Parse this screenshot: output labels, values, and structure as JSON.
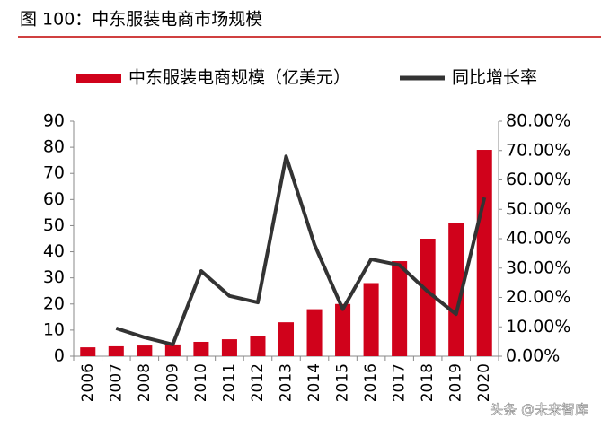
{
  "chart_data": {
    "type": "bar-line",
    "title": "图 100：中东服装电商市场规模",
    "watermark": "头条 @未来智库",
    "categories": [
      "2006",
      "2007",
      "2008",
      "2009",
      "2010",
      "2011",
      "2012",
      "2013",
      "2014",
      "2015",
      "2016",
      "2017",
      "2018",
      "2019",
      "2020"
    ],
    "series": [
      {
        "name": "中东服装电商规模（亿美元）",
        "type": "bar",
        "color": "#d0021b",
        "values": [
          3.4,
          3.8,
          4.1,
          4.5,
          5.5,
          6.5,
          7.6,
          13,
          18,
          20,
          28,
          36.4,
          45,
          51,
          79
        ]
      },
      {
        "name": "同比增长率",
        "type": "line",
        "color": "#333333",
        "axis": "y2",
        "values": [
          null,
          9.5,
          6.4,
          4,
          29,
          20.5,
          18.3,
          68,
          38,
          16,
          33,
          31,
          22,
          14.3,
          54
        ]
      }
    ],
    "ylim": [
      0,
      90
    ],
    "yticks": [
      0,
      10,
      20,
      30,
      40,
      50,
      60,
      70,
      80,
      90
    ],
    "y2lim": [
      0,
      80
    ],
    "y2ticks": [
      {
        "value": 0,
        "label": "0.00%"
      },
      {
        "value": 10,
        "label": "10.00%"
      },
      {
        "value": 20,
        "label": "20.00%"
      },
      {
        "value": 30,
        "label": "30.00%"
      },
      {
        "value": 40,
        "label": "40.00%"
      },
      {
        "value": 50,
        "label": "50.00%"
      },
      {
        "value": 60,
        "label": "60.00%"
      },
      {
        "value": 70,
        "label": "70.00%"
      },
      {
        "value": 80,
        "label": "80.00%"
      }
    ],
    "grid": false,
    "legend": "top"
  }
}
